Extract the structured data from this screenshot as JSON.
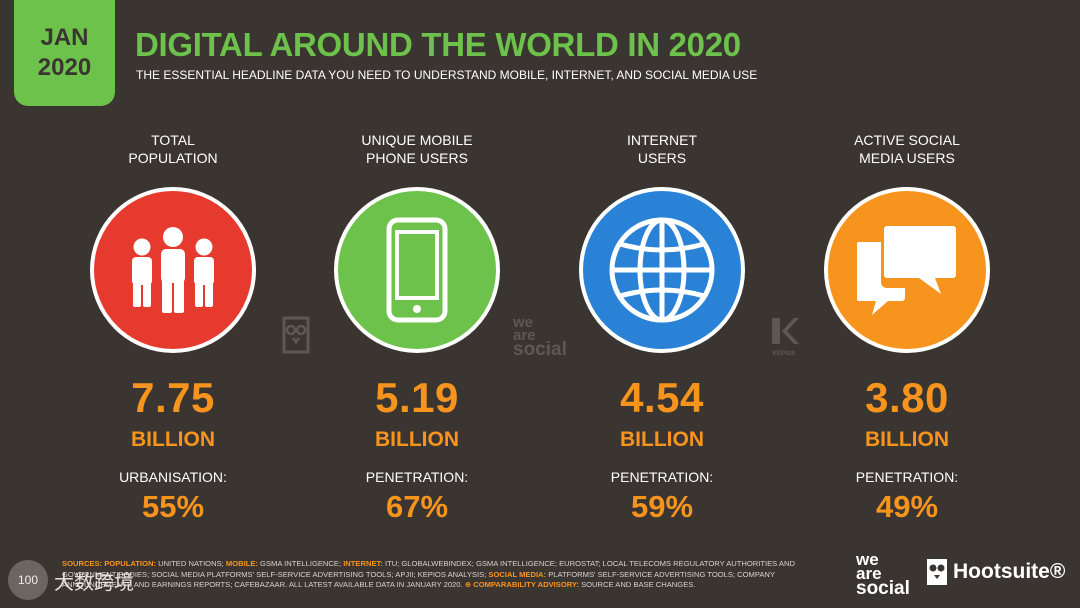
{
  "header": {
    "badge_month": "JAN",
    "badge_year": "2020",
    "title": "DIGITAL AROUND THE WORLD IN 2020",
    "subtitle": "THE ESSENTIAL HEADLINE DATA YOU NEED TO UNDERSTAND MOBILE, INTERNET, AND SOCIAL MEDIA USE"
  },
  "stats": [
    {
      "label": "TOTAL\nPOPULATION",
      "icon": "people-icon",
      "color": "#e63a2e",
      "value": "7.75",
      "unit": "BILLION",
      "sublabel": "URBANISATION:",
      "subvalue": "55%"
    },
    {
      "label": "UNIQUE MOBILE\nPHONE USERS",
      "icon": "mobile-phone-icon",
      "color": "#6cc24a",
      "value": "5.19",
      "unit": "BILLION",
      "sublabel": "PENETRATION:",
      "subvalue": "67%"
    },
    {
      "label": "INTERNET\nUSERS",
      "icon": "globe-icon",
      "color": "#2a82d6",
      "value": "4.54",
      "unit": "BILLION",
      "sublabel": "PENETRATION:",
      "subvalue": "59%"
    },
    {
      "label": "ACTIVE SOCIAL\nMEDIA USERS",
      "icon": "chat-bubbles-icon",
      "color": "#f7941d",
      "value": "3.80",
      "unit": "BILLION",
      "sublabel": "PENETRATION:",
      "subvalue": "49%"
    }
  ],
  "footer": {
    "sources_label": "SOURCES:",
    "s_population": "POPULATION:",
    "t_population": " UNITED NATIONS; ",
    "s_mobile": "MOBILE:",
    "t_mobile": " GSMA INTELLIGENCE; ",
    "s_internet": "INTERNET:",
    "t_internet": " ITU; GLOBALWEBINDEX; GSMA INTELLIGENCE; EUROSTAT; LOCAL TELECOMS REGULATORY AUTHORITIES AND GOVERNMENT BODIES; SOCIAL MEDIA PLATFORMS' SELF-SERVICE ADVERTISING TOOLS; APJII; KEPIOS ANALYSIS; ",
    "s_social": "SOCIAL MEDIA:",
    "t_social": " PLATFORMS' SELF-SERVICE ADVERTISING TOOLS; COMPANY ANNOUNCEMENTS AND EARNINGS REPORTS; CAFEBAZAAR. ALL LATEST AVAILABLE DATA IN JANUARY 2020. ",
    "s_advisory": "⊕ COMPARABILITY ADVISORY:",
    "t_advisory": " SOURCE AND BASE CHANGES.",
    "watermark_we": "we",
    "watermark_are": "are",
    "watermark_social": "social",
    "kepios": "KEPIOS",
    "brand_we": "we",
    "brand_are": "are",
    "brand_social": "social",
    "hootsuite": "Hootsuite®",
    "corner_logo_text": "大数跨境",
    "corner_logo_badge": "100"
  }
}
